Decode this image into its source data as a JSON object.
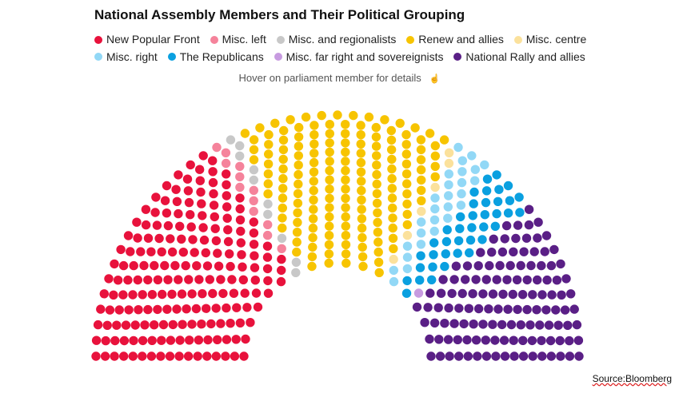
{
  "title": "National Assembly Members and Their Political Grouping",
  "hint": "Hover on parliament member for details",
  "source": "Source:Bloomberg",
  "chart_data": {
    "type": "parliament",
    "total_seats": 577,
    "parties": [
      {
        "name": "New Popular Front",
        "seats": 193,
        "color": "#e8123c"
      },
      {
        "name": "Misc. left",
        "seats": 12,
        "color": "#f5839b"
      },
      {
        "name": "Misc. and regionalists",
        "seats": 10,
        "color": "#c8c8c8"
      },
      {
        "name": "Renew and allies",
        "seats": 163,
        "color": "#f7c400"
      },
      {
        "name": "Misc. centre",
        "seats": 6,
        "color": "#fbe19c"
      },
      {
        "name": "Misc. right",
        "seats": 27,
        "color": "#92d8f6"
      },
      {
        "name": "The Republicans",
        "seats": 39,
        "color": "#0aa0e0"
      },
      {
        "name": "Misc. far right and sovereignists",
        "seats": 1,
        "color": "#c79be0"
      },
      {
        "name": "National Rally and allies",
        "seats": 126,
        "color": "#5a1f86"
      }
    ]
  }
}
